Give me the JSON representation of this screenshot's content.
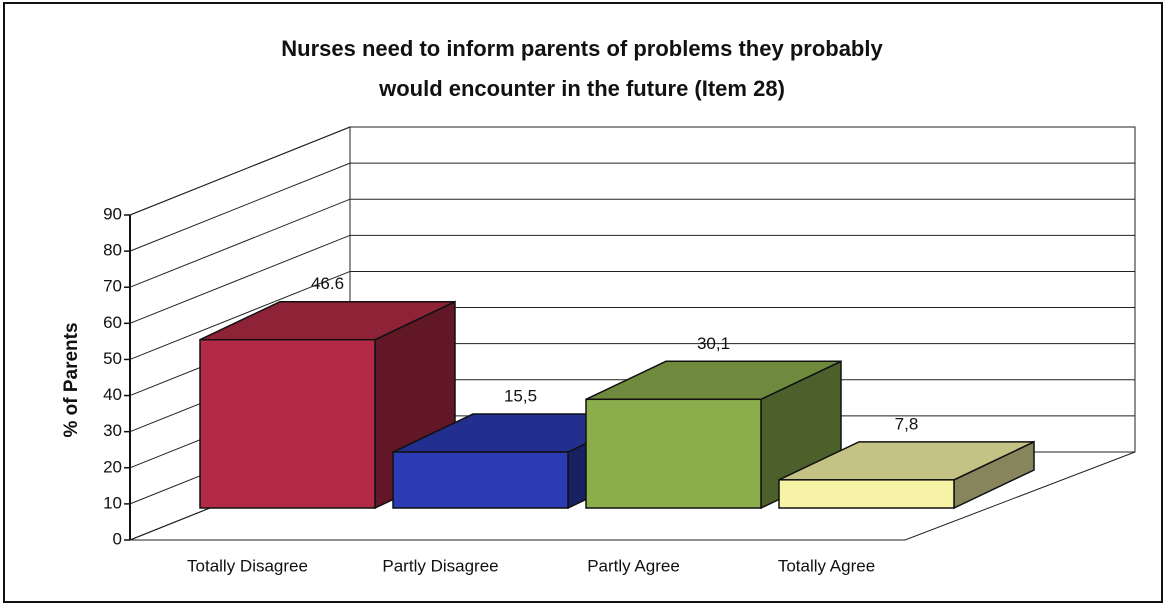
{
  "chart_data": {
    "type": "bar3d",
    "title": [
      "Nurses need to inform parents of problems they probably",
      "would encounter in the future (Item 28)"
    ],
    "y_label": "% of Parents",
    "categories": [
      "Totally Disagree",
      "Partly Disagree",
      "Partly Agree",
      "Totally Agree"
    ],
    "values": [
      46.6,
      15.5,
      30.1,
      7.8
    ],
    "value_labels": [
      "46.6",
      "15,5",
      "30,1",
      "7,8"
    ],
    "colors": [
      "#b22a45",
      "#2b3bb3",
      "#8cad4c",
      "#f6f2a6"
    ],
    "ylim": [
      0,
      90
    ],
    "yticks": [
      0,
      10,
      20,
      30,
      40,
      50,
      60,
      70,
      80,
      90
    ],
    "grid": true
  }
}
